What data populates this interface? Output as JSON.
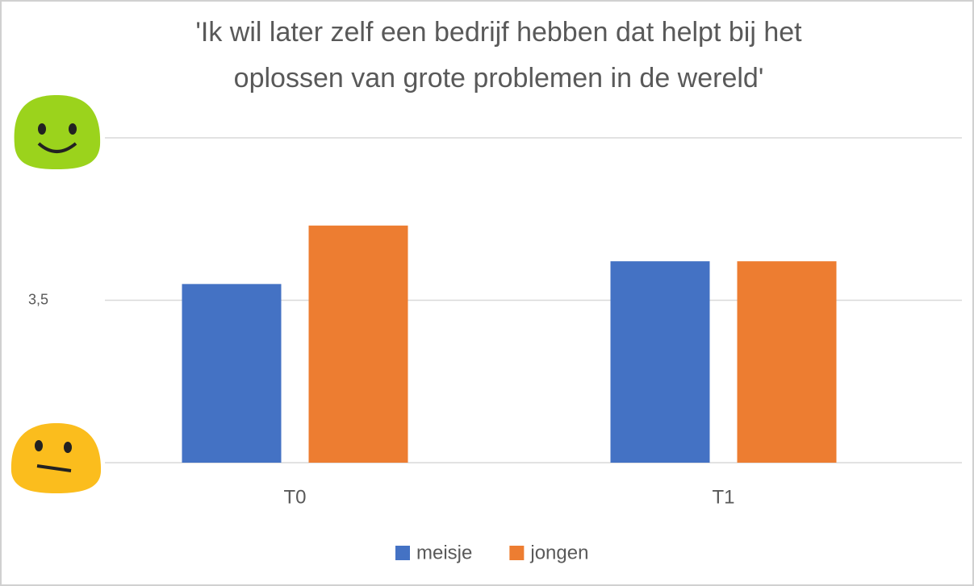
{
  "chart_data": {
    "type": "bar",
    "title": [
      "'Ik wil later zelf een bedrijf hebben dat helpt bij het",
      "oplossen van grote problemen in de wereld'"
    ],
    "categories": [
      "T0",
      "T1"
    ],
    "series": [
      {
        "name": "meisje",
        "color": "#4472c4",
        "values": [
          3.55,
          3.62
        ]
      },
      {
        "name": "jongen",
        "color": "#ed7d31",
        "values": [
          3.73,
          3.62
        ]
      }
    ],
    "ylim": [
      3,
      4
    ],
    "yticks": [
      {
        "value": 3.5,
        "label": "3,5"
      }
    ],
    "grid": true,
    "legend": "bottom"
  }
}
